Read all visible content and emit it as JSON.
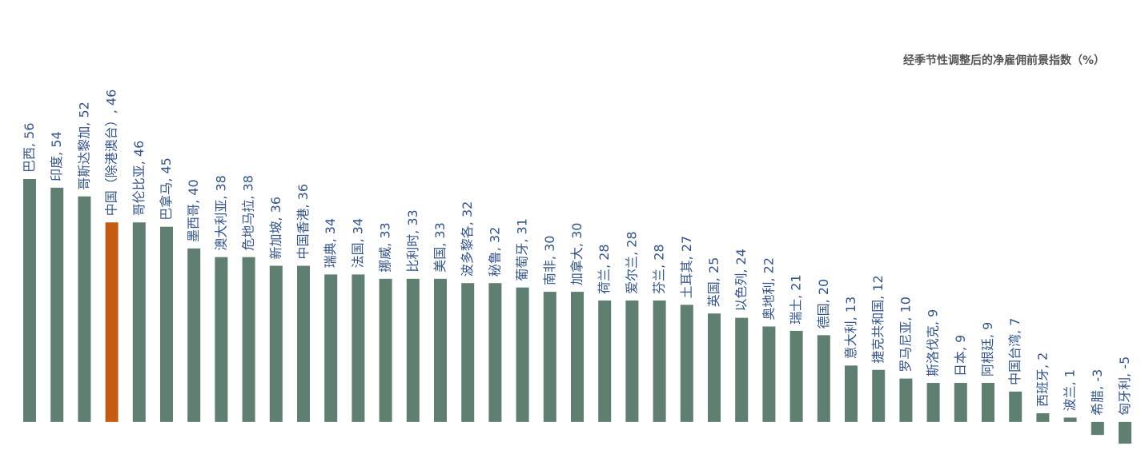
{
  "chart_data": {
    "type": "bar",
    "title": "经季节性调整后的净雇佣前景指数（%）",
    "separator": ", ",
    "categories": [
      "巴西",
      "印度",
      "哥斯达黎加",
      "中国（除港澳台）",
      "哥伦比亚",
      "巴拿马",
      "墨西哥",
      "澳大利亚",
      "危地马拉",
      "新加坡",
      "中国香港",
      "瑞典",
      "法国",
      "挪威",
      "比利时",
      "美国",
      "波多黎各",
      "秘鲁",
      "葡萄牙",
      "南非",
      "加拿大",
      "荷兰",
      "爱尔兰",
      "芬兰",
      "土耳其",
      "英国",
      "以色列",
      "奥地利",
      "瑞士",
      "德国",
      "意大利",
      "捷克共和国",
      "罗马尼亚",
      "斯洛伐克",
      "日本",
      "阿根廷",
      "中国台湾",
      "西班牙",
      "波兰",
      "希腊",
      "匈牙利"
    ],
    "values": [
      56,
      54,
      52,
      46,
      46,
      45,
      40,
      38,
      38,
      36,
      36,
      34,
      34,
      33,
      33,
      33,
      32,
      32,
      31,
      30,
      30,
      28,
      28,
      28,
      27,
      25,
      24,
      22,
      21,
      20,
      13,
      12,
      10,
      9,
      9,
      9,
      7,
      2,
      1,
      -3,
      -5
    ],
    "colors": [
      "#5f7f71",
      "#5f7f71",
      "#5f7f71",
      "#c55a11",
      "#5f7f71",
      "#5f7f71",
      "#5f7f71",
      "#5f7f71",
      "#5f7f71",
      "#5f7f71",
      "#5f7f71",
      "#5f7f71",
      "#5f7f71",
      "#5f7f71",
      "#5f7f71",
      "#5f7f71",
      "#5f7f71",
      "#5f7f71",
      "#5f7f71",
      "#5f7f71",
      "#5f7f71",
      "#5f7f71",
      "#5f7f71",
      "#5f7f71",
      "#5f7f71",
      "#5f7f71",
      "#5f7f71",
      "#5f7f71",
      "#5f7f71",
      "#5f7f71",
      "#5f7f71",
      "#5f7f71",
      "#5f7f71",
      "#5f7f71",
      "#5f7f71",
      "#5f7f71",
      "#5f7f71",
      "#5f7f71",
      "#5f7f71",
      "#5f7f71",
      "#5f7f71"
    ],
    "ylim": [
      -5,
      56
    ]
  }
}
